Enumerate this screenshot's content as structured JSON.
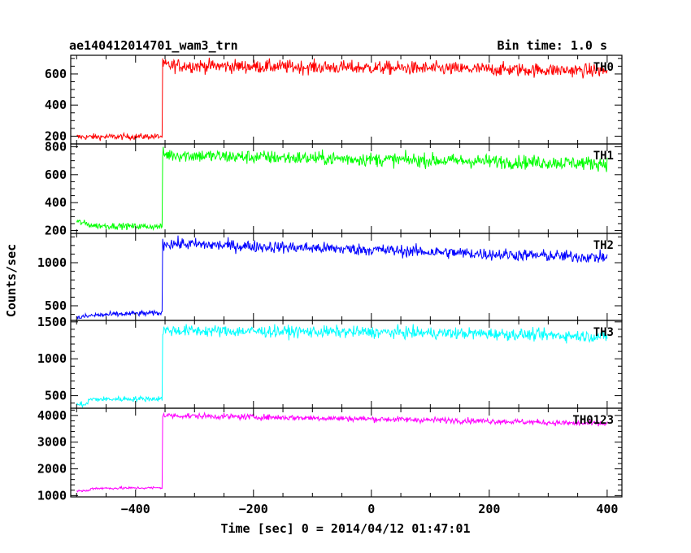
{
  "chart_data": {
    "type": "line",
    "title": "ae140412014701_wam3_trn",
    "bin_time_label": "Bin time: 1.0 s",
    "xlabel": "Time [sec] 0 = 2014/04/12 01:47:01",
    "ylabel": "Counts/sec",
    "xlim": [
      -510,
      425
    ],
    "x_ticks": [
      -400,
      -200,
      0,
      200,
      400
    ],
    "x_tick_labels": [
      "−400",
      "−200",
      "0",
      "200",
      "400"
    ],
    "grid": false,
    "panels": [
      {
        "name": "TH0",
        "color": "#ff0000",
        "ylim": [
          150,
          720
        ],
        "y_ticks": [
          200,
          400,
          600
        ],
        "y_tick_labels": [
          "200",
          "400",
          "600"
        ],
        "profile": [
          [
            -500,
            195
          ],
          [
            -355,
            198
          ],
          [
            -354,
            655
          ],
          [
            -250,
            650
          ],
          [
            0,
            640
          ],
          [
            200,
            630
          ],
          [
            400,
            620
          ]
        ],
        "noise": 22
      },
      {
        "name": "TH1",
        "color": "#00ff00",
        "ylim": [
          180,
          820
        ],
        "y_ticks": [
          200,
          400,
          600,
          800
        ],
        "y_tick_labels": [
          "200",
          "400",
          "600",
          "800"
        ],
        "profile": [
          [
            -500,
            265
          ],
          [
            -470,
            235
          ],
          [
            -355,
            228
          ],
          [
            -354,
            745
          ],
          [
            -250,
            730
          ],
          [
            0,
            710
          ],
          [
            200,
            695
          ],
          [
            400,
            680
          ]
        ],
        "noise": 25
      },
      {
        "name": "TH2",
        "color": "#0000ff",
        "ylim": [
          330,
          1340
        ],
        "y_ticks": [
          500,
          1000
        ],
        "y_tick_labels": [
          "500",
          "1000"
        ],
        "profile": [
          [
            -500,
            360
          ],
          [
            -470,
            390
          ],
          [
            -400,
            410
          ],
          [
            -355,
            415
          ],
          [
            -354,
            1225
          ],
          [
            -250,
            1200
          ],
          [
            0,
            1150
          ],
          [
            200,
            1100
          ],
          [
            400,
            1060
          ]
        ],
        "noise": 35
      },
      {
        "name": "TH3",
        "color": "#00ffff",
        "ylim": [
          330,
          1520
        ],
        "y_ticks": [
          500,
          1000,
          1500
        ],
        "y_tick_labels": [
          "500",
          "1000",
          "1500"
        ],
        "profile": [
          [
            -500,
            380
          ],
          [
            -481,
            385
          ],
          [
            -480,
            450
          ],
          [
            -355,
            460
          ],
          [
            -354,
            1385
          ],
          [
            -250,
            1375
          ],
          [
            0,
            1360
          ],
          [
            200,
            1340
          ],
          [
            400,
            1300
          ]
        ],
        "noise": 40
      },
      {
        "name": "TH0123",
        "color": "#ff00ff",
        "ylim": [
          950,
          4270
        ],
        "y_ticks": [
          1000,
          2000,
          3000,
          4000
        ],
        "y_tick_labels": [
          "1000",
          "2000",
          "3000",
          "4000"
        ],
        "profile": [
          [
            -500,
            1170
          ],
          [
            -480,
            1180
          ],
          [
            -475,
            1270
          ],
          [
            -355,
            1290
          ],
          [
            -354,
            4000
          ],
          [
            -250,
            3960
          ],
          [
            0,
            3870
          ],
          [
            200,
            3790
          ],
          [
            400,
            3680
          ]
        ],
        "noise": 55
      }
    ]
  }
}
